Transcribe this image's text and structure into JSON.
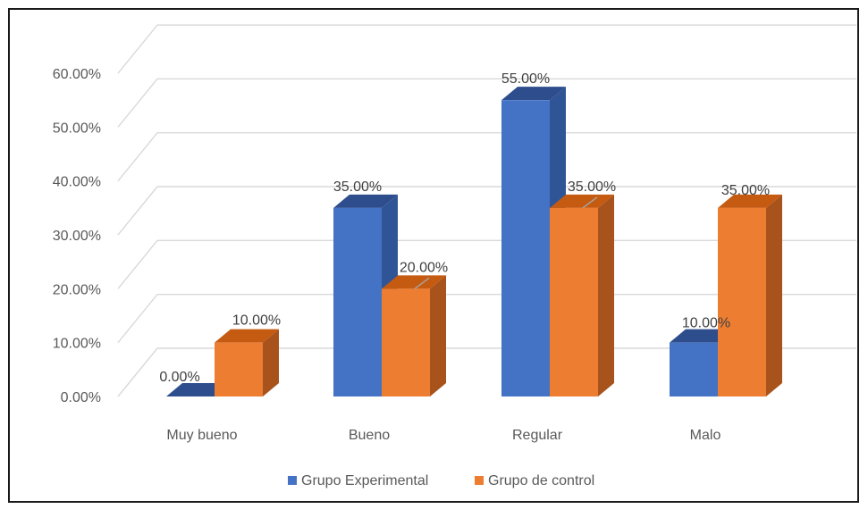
{
  "chart_data": {
    "type": "bar",
    "title": "",
    "xlabel": "",
    "ylabel": "",
    "categories": [
      "Muy bueno",
      "Bueno",
      "Regular",
      "Malo"
    ],
    "series": [
      {
        "name": "Grupo Experimental",
        "values": [
          0.0,
          35.0,
          55.0,
          10.0
        ],
        "labels": [
          "0.00%",
          "35.00%",
          "55.00%",
          "10.00%"
        ]
      },
      {
        "name": "Grupo de control",
        "values": [
          10.0,
          20.0,
          35.0,
          35.0
        ],
        "labels": [
          "10.00%",
          "20.00%",
          "35.00%",
          "35.00%"
        ]
      }
    ],
    "ylim": [
      0,
      60
    ],
    "yticks": [
      0,
      10,
      20,
      30,
      40,
      50,
      60
    ],
    "ytick_labels": [
      "0.00%",
      "10.00%",
      "20.00%",
      "30.00%",
      "40.00%",
      "50.00%",
      "60.00%"
    ],
    "grid": true,
    "legend_position": "bottom",
    "three_d": true
  },
  "colors": {
    "series": [
      {
        "front": "#4472c4",
        "side": "#2f5597",
        "top": "#2e4d8c"
      },
      {
        "front": "#ed7d31",
        "side": "#a8521c",
        "top": "#c55a11"
      }
    ],
    "grid": "#d9d9d9",
    "text": "#595959"
  }
}
